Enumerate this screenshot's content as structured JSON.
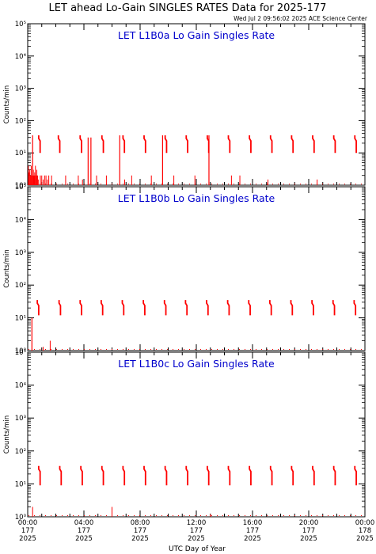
{
  "title": "LET ahead Lo-Gain SINGLES RATES Data for 2025-177",
  "timestamp": "Wed Jul  2 09:56:02 2025 ACE Science Center",
  "x_axis": {
    "label": "UTC Day of Year",
    "ticks": [
      {
        "hour": 0,
        "time": "00:00",
        "doy": "177",
        "year": "2025"
      },
      {
        "hour": 4,
        "time": "04:00",
        "doy": "177",
        "year": "2025"
      },
      {
        "hour": 8,
        "time": "08:00",
        "doy": "177",
        "year": "2025"
      },
      {
        "hour": 12,
        "time": "12:00",
        "doy": "177",
        "year": "2025"
      },
      {
        "hour": 16,
        "time": "16:00",
        "doy": "177",
        "year": "2025"
      },
      {
        "hour": 20,
        "time": "20:00",
        "doy": "177",
        "year": "2025"
      },
      {
        "hour": 24,
        "time": "00:00",
        "doy": "178",
        "year": "2025"
      }
    ]
  },
  "colors": {
    "data": "#ff0000",
    "panel_title": "#0000cc",
    "axes": "#000000"
  },
  "chart_data": [
    {
      "type": "scatter",
      "title": "LET L1B0a Lo Gain Singles Rate",
      "ylabel": "Counts/min",
      "yscale": "log",
      "ylim": [
        1,
        100000
      ],
      "xlim": [
        0,
        24
      ],
      "y_tick_labels": [
        "10⁰",
        "10¹",
        "10²",
        "10³",
        "10⁴",
        "10⁵"
      ],
      "bursts": [
        {
          "x": 0.85,
          "low": 10,
          "high": 35
        },
        {
          "x": 2.25,
          "low": 10,
          "high": 35
        },
        {
          "x": 3.8,
          "low": 10,
          "high": 35
        },
        {
          "x": 5.35,
          "low": 10,
          "high": 35
        },
        {
          "x": 6.85,
          "low": 10,
          "high": 35
        },
        {
          "x": 8.35,
          "low": 10,
          "high": 35
        },
        {
          "x": 9.85,
          "low": 10,
          "high": 35
        },
        {
          "x": 11.35,
          "low": 10,
          "high": 35
        },
        {
          "x": 12.85,
          "low": 10,
          "high": 35
        },
        {
          "x": 14.35,
          "low": 10,
          "high": 35
        },
        {
          "x": 15.85,
          "low": 10,
          "high": 35
        },
        {
          "x": 17.35,
          "low": 10,
          "high": 35
        },
        {
          "x": 18.85,
          "low": 10,
          "high": 35
        },
        {
          "x": 20.35,
          "low": 10,
          "high": 35
        },
        {
          "x": 21.85,
          "low": 10,
          "high": 35
        },
        {
          "x": 23.35,
          "low": 10,
          "high": 35
        }
      ],
      "spikes": [
        {
          "x": 0.35,
          "y": 35
        },
        {
          "x": 4.3,
          "y": 30
        },
        {
          "x": 4.5,
          "y": 30
        },
        {
          "x": 6.55,
          "y": 35
        },
        {
          "x": 9.6,
          "y": 35
        },
        {
          "x": 12.9,
          "y": 35
        }
      ],
      "noise": [
        {
          "x": 0.05,
          "y": 4
        },
        {
          "x": 0.1,
          "y": 2.5
        },
        {
          "x": 0.15,
          "y": 3
        },
        {
          "x": 0.2,
          "y": 2
        },
        {
          "x": 0.25,
          "y": 4
        },
        {
          "x": 0.3,
          "y": 2
        },
        {
          "x": 0.4,
          "y": 3
        },
        {
          "x": 0.45,
          "y": 2
        },
        {
          "x": 0.5,
          "y": 2.5
        },
        {
          "x": 0.55,
          "y": 4
        },
        {
          "x": 0.6,
          "y": 2
        },
        {
          "x": 0.65,
          "y": 3
        },
        {
          "x": 0.7,
          "y": 2
        },
        {
          "x": 0.75,
          "y": 1.5
        },
        {
          "x": 0.9,
          "y": 2
        },
        {
          "x": 1.0,
          "y": 2
        },
        {
          "x": 1.1,
          "y": 1.5
        },
        {
          "x": 1.2,
          "y": 2
        },
        {
          "x": 1.3,
          "y": 2
        },
        {
          "x": 1.4,
          "y": 1.5
        },
        {
          "x": 1.5,
          "y": 2
        },
        {
          "x": 1.7,
          "y": 2
        },
        {
          "x": 2.7,
          "y": 2
        },
        {
          "x": 3.6,
          "y": 2
        },
        {
          "x": 3.9,
          "y": 1.5
        },
        {
          "x": 4.9,
          "y": 2
        },
        {
          "x": 5.6,
          "y": 2
        },
        {
          "x": 6.9,
          "y": 1.5
        },
        {
          "x": 7.4,
          "y": 2
        },
        {
          "x": 8.8,
          "y": 2
        },
        {
          "x": 10.4,
          "y": 2
        },
        {
          "x": 11.9,
          "y": 2
        },
        {
          "x": 14.5,
          "y": 2
        },
        {
          "x": 15.1,
          "y": 2
        },
        {
          "x": 17.1,
          "y": 1.5
        },
        {
          "x": 20.6,
          "y": 1.5
        }
      ]
    },
    {
      "type": "scatter",
      "title": "LET L1B0b Lo Gain Singles Rate",
      "ylabel": "Counts/min",
      "yscale": "log",
      "ylim": [
        1,
        100000
      ],
      "xlim": [
        0,
        24
      ],
      "y_tick_labels": [
        "10⁰",
        "10¹",
        "10²",
        "10³",
        "10⁴",
        "10⁵"
      ],
      "bursts": [
        {
          "x": 0.75,
          "low": 12,
          "high": 35
        },
        {
          "x": 2.3,
          "low": 12,
          "high": 35
        },
        {
          "x": 3.8,
          "low": 12,
          "high": 35
        },
        {
          "x": 5.3,
          "low": 12,
          "high": 35
        },
        {
          "x": 6.8,
          "low": 12,
          "high": 35
        },
        {
          "x": 8.3,
          "low": 12,
          "high": 35
        },
        {
          "x": 9.8,
          "low": 12,
          "high": 35
        },
        {
          "x": 11.3,
          "low": 12,
          "high": 35
        },
        {
          "x": 12.8,
          "low": 12,
          "high": 35
        },
        {
          "x": 14.3,
          "low": 12,
          "high": 35
        },
        {
          "x": 15.8,
          "low": 12,
          "high": 35
        },
        {
          "x": 17.3,
          "low": 12,
          "high": 35
        },
        {
          "x": 18.8,
          "low": 12,
          "high": 35
        },
        {
          "x": 20.3,
          "low": 12,
          "high": 35
        },
        {
          "x": 21.8,
          "low": 12,
          "high": 35
        },
        {
          "x": 23.3,
          "low": 12,
          "high": 35
        }
      ],
      "spikes": [
        {
          "x": 0.3,
          "y": 10
        }
      ],
      "noise": [
        {
          "x": 1.6,
          "y": 2
        },
        {
          "x": 1.1,
          "y": 1.3
        }
      ]
    },
    {
      "type": "scatter",
      "title": "LET L1B0c Lo Gain Singles Rate",
      "ylabel": "Counts/min",
      "yscale": "log",
      "ylim": [
        1,
        100000
      ],
      "xlim": [
        0,
        24
      ],
      "y_tick_labels": [
        "10⁰",
        "10¹",
        "10²",
        "10³",
        "10⁴",
        "10⁵"
      ],
      "bursts": [
        {
          "x": 0.85,
          "low": 9,
          "high": 35
        },
        {
          "x": 2.35,
          "low": 9,
          "high": 35
        },
        {
          "x": 3.85,
          "low": 9,
          "high": 35
        },
        {
          "x": 5.35,
          "low": 9,
          "high": 35
        },
        {
          "x": 6.85,
          "low": 9,
          "high": 35
        },
        {
          "x": 8.35,
          "low": 9,
          "high": 35
        },
        {
          "x": 9.85,
          "low": 9,
          "high": 35
        },
        {
          "x": 11.35,
          "low": 9,
          "high": 35
        },
        {
          "x": 12.85,
          "low": 9,
          "high": 35
        },
        {
          "x": 14.35,
          "low": 9,
          "high": 35
        },
        {
          "x": 15.85,
          "low": 9,
          "high": 35
        },
        {
          "x": 17.35,
          "low": 9,
          "high": 35
        },
        {
          "x": 18.85,
          "low": 9,
          "high": 35
        },
        {
          "x": 20.35,
          "low": 9,
          "high": 35
        },
        {
          "x": 21.85,
          "low": 9,
          "high": 35
        },
        {
          "x": 23.35,
          "low": 9,
          "high": 35
        }
      ],
      "spikes": [],
      "noise": [
        {
          "x": 0.35,
          "y": 2
        },
        {
          "x": 6.0,
          "y": 2
        },
        {
          "x": 13.0,
          "y": 1.2
        }
      ]
    }
  ]
}
